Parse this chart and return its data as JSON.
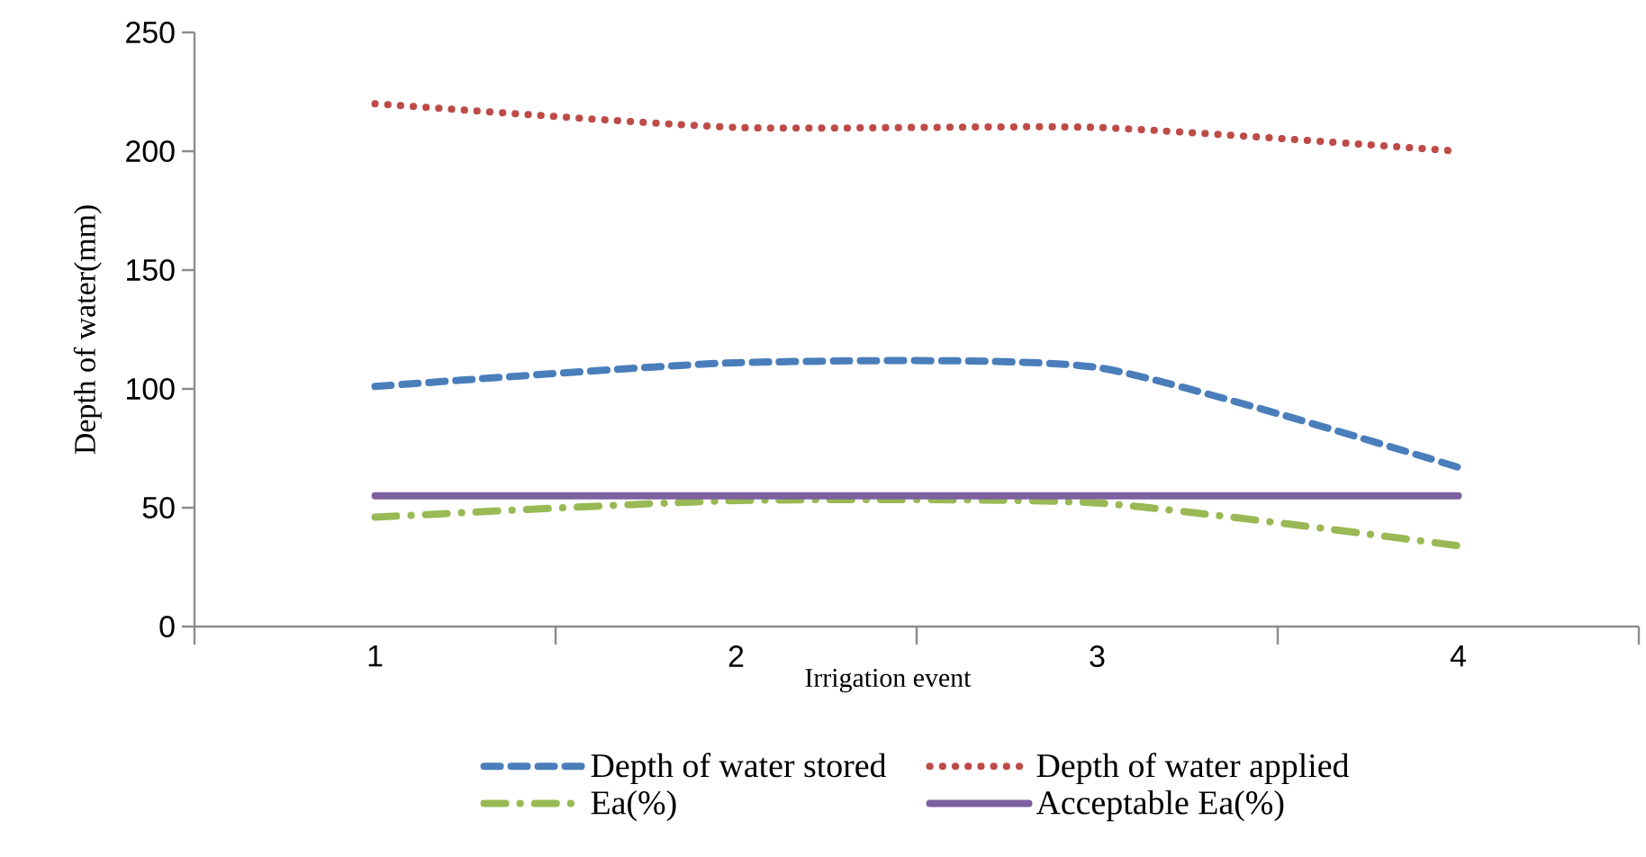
{
  "chart_data": {
    "type": "line",
    "xlabel": "Irrigation event",
    "ylabel": "Depth of water(mm)",
    "categories": [
      "1",
      "2",
      "3",
      "4"
    ],
    "series": [
      {
        "name": "Depth of water stored",
        "color": "#4a7ebb",
        "line_style": "dashed",
        "values": [
          101,
          111,
          109,
          67
        ]
      },
      {
        "name": "Depth of water applied",
        "color": "#be4b48",
        "line_style": "dotted",
        "values": [
          220,
          210,
          210,
          200
        ]
      },
      {
        "name": "Ea(%)",
        "color": "#98b954",
        "line_style": "dashdot",
        "values": [
          46,
          53,
          52,
          34
        ]
      },
      {
        "name": "Acceptable Ea(%)",
        "color": "#7d60a0",
        "line_style": "solid",
        "values": [
          55,
          55,
          55,
          55
        ]
      }
    ],
    "ylim": [
      0,
      250
    ],
    "yticks": [
      0,
      50,
      100,
      150,
      200,
      250
    ],
    "grid": false,
    "legend": "bottom"
  }
}
